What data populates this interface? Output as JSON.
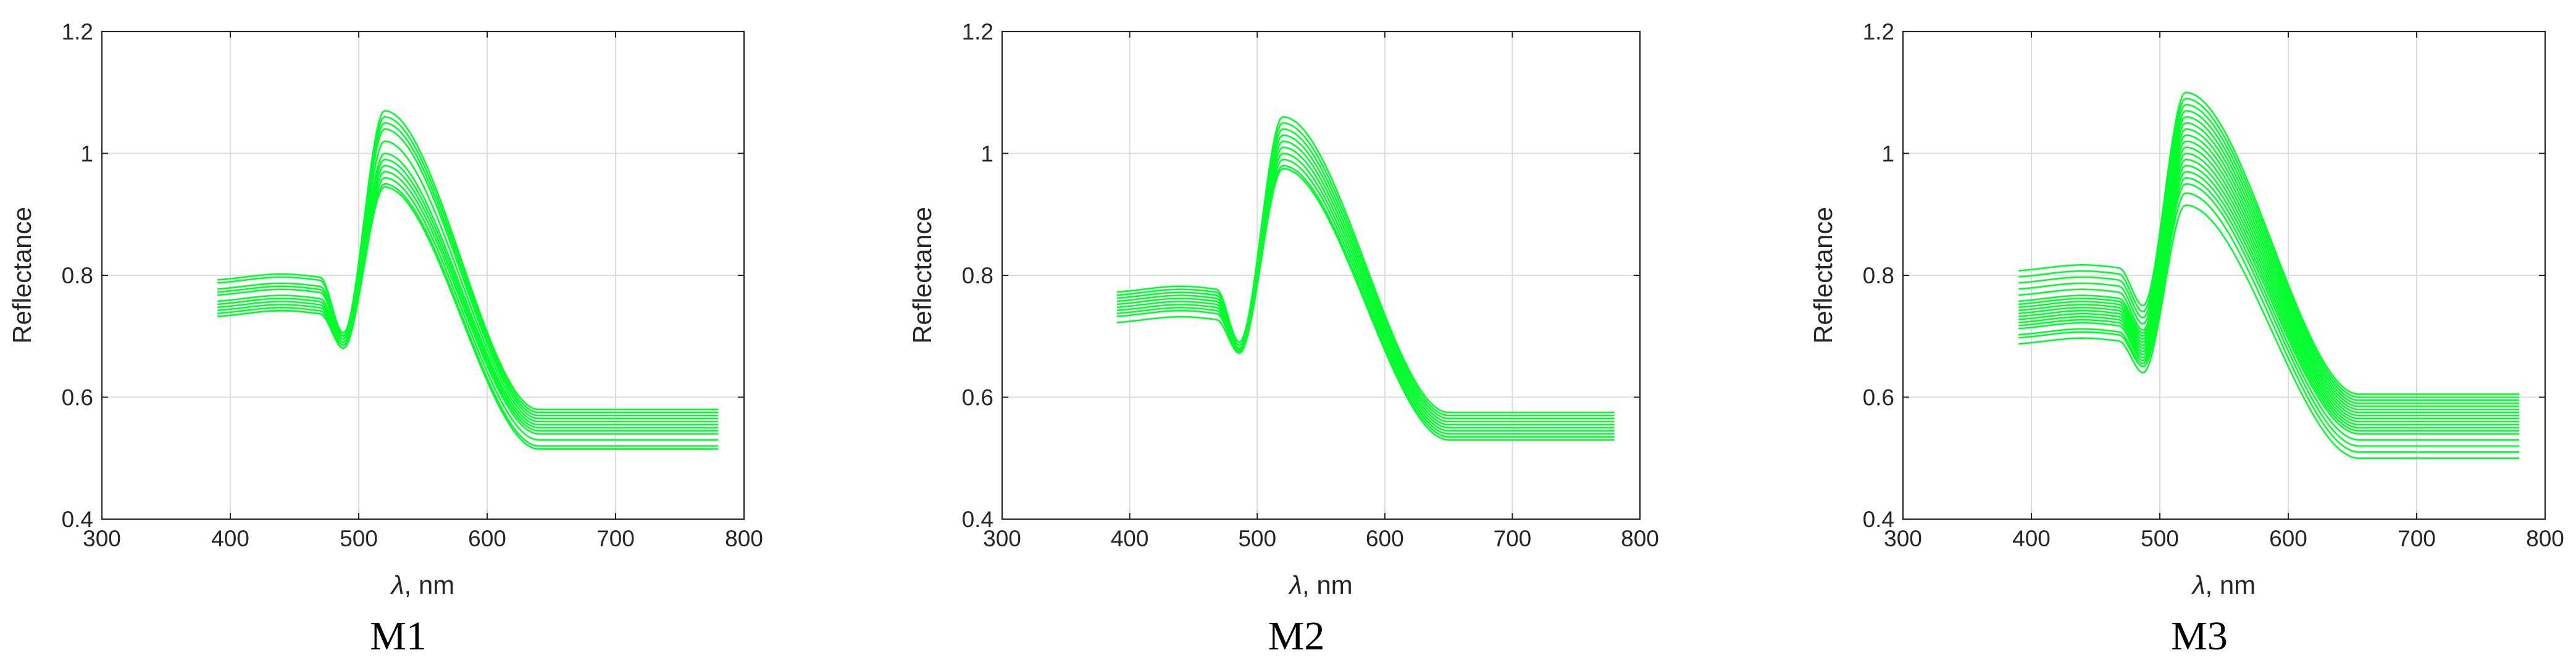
{
  "figure": {
    "background": "#ffffff"
  },
  "style": {
    "line_color": "#00ff2a",
    "grid_color": "#dcdcdc",
    "axis_color": "#262626",
    "text_color": "#262626",
    "label_color": "#000000"
  },
  "chart_data": [
    {
      "type": "line",
      "panel_label": "M1",
      "xlabel_symbol": "λ",
      "xlabel_rest": ", nm",
      "ylabel": "Reflectance",
      "xlim": [
        300,
        800
      ],
      "ylim": [
        0.4,
        1.2
      ],
      "xticks": [
        300,
        400,
        500,
        600,
        700,
        800
      ],
      "yticks": [
        0.4,
        0.6,
        0.8,
        1,
        1.2
      ],
      "xtick_labels": [
        "300",
        "400",
        "500",
        "600",
        "700",
        "800"
      ],
      "ytick_labels": [
        "0.4",
        "0.6",
        "0.8",
        "1",
        "1.2"
      ],
      "grid": true,
      "shape": {
        "dip_x": 488,
        "peak_x": 520,
        "rise_start_x": 470,
        "plateau_x": 640,
        "x_start": 390,
        "x_end": 780
      },
      "series": [
        {
          "name": "s1",
          "start": 0.79,
          "dip": 0.705,
          "peak": 1.07,
          "plateau": 0.58
        },
        {
          "name": "s2",
          "start": 0.785,
          "dip": 0.7,
          "peak": 1.06,
          "plateau": 0.575
        },
        {
          "name": "s3",
          "start": 0.775,
          "dip": 0.7,
          "peak": 1.05,
          "plateau": 0.57
        },
        {
          "name": "s4",
          "start": 0.77,
          "dip": 0.695,
          "peak": 1.04,
          "plateau": 0.565
        },
        {
          "name": "s5",
          "start": 0.765,
          "dip": 0.695,
          "peak": 1.02,
          "plateau": 0.56
        },
        {
          "name": "s6",
          "start": 0.755,
          "dip": 0.69,
          "peak": 1.0,
          "plateau": 0.555
        },
        {
          "name": "s7",
          "start": 0.75,
          "dip": 0.69,
          "peak": 0.99,
          "plateau": 0.55
        },
        {
          "name": "s8",
          "start": 0.745,
          "dip": 0.685,
          "peak": 0.98,
          "plateau": 0.545
        },
        {
          "name": "s9",
          "start": 0.74,
          "dip": 0.685,
          "peak": 0.97,
          "plateau": 0.54
        },
        {
          "name": "s10",
          "start": 0.735,
          "dip": 0.68,
          "peak": 0.96,
          "plateau": 0.53
        },
        {
          "name": "s11",
          "start": 0.73,
          "dip": 0.68,
          "peak": 0.95,
          "plateau": 0.52
        },
        {
          "name": "s12",
          "start": 0.73,
          "dip": 0.68,
          "peak": 0.945,
          "plateau": 0.515
        }
      ]
    },
    {
      "type": "line",
      "panel_label": "M2",
      "xlabel_symbol": "λ",
      "xlabel_rest": ", nm",
      "ylabel": "Reflectance",
      "xlim": [
        300,
        800
      ],
      "ylim": [
        0.4,
        1.2
      ],
      "xticks": [
        300,
        400,
        500,
        600,
        700,
        800
      ],
      "yticks": [
        0.4,
        0.6,
        0.8,
        1,
        1.2
      ],
      "xtick_labels": [
        "300",
        "400",
        "500",
        "600",
        "700",
        "800"
      ],
      "ytick_labels": [
        "0.4",
        "0.6",
        "0.8",
        "1",
        "1.2"
      ],
      "grid": true,
      "shape": {
        "dip_x": 486,
        "peak_x": 520,
        "rise_start_x": 468,
        "plateau_x": 650,
        "x_start": 390,
        "x_end": 780
      },
      "series": [
        {
          "name": "s1",
          "start": 0.77,
          "dip": 0.69,
          "peak": 1.06,
          "plateau": 0.575
        },
        {
          "name": "s2",
          "start": 0.765,
          "dip": 0.69,
          "peak": 1.05,
          "plateau": 0.57
        },
        {
          "name": "s3",
          "start": 0.76,
          "dip": 0.685,
          "peak": 1.04,
          "plateau": 0.565
        },
        {
          "name": "s4",
          "start": 0.755,
          "dip": 0.685,
          "peak": 1.03,
          "plateau": 0.56
        },
        {
          "name": "s5",
          "start": 0.75,
          "dip": 0.68,
          "peak": 1.02,
          "plateau": 0.555
        },
        {
          "name": "s6",
          "start": 0.745,
          "dip": 0.68,
          "peak": 1.01,
          "plateau": 0.55
        },
        {
          "name": "s7",
          "start": 0.74,
          "dip": 0.678,
          "peak": 1.0,
          "plateau": 0.545
        },
        {
          "name": "s8",
          "start": 0.735,
          "dip": 0.675,
          "peak": 0.99,
          "plateau": 0.54
        },
        {
          "name": "s9",
          "start": 0.73,
          "dip": 0.675,
          "peak": 0.98,
          "plateau": 0.535
        },
        {
          "name": "s10",
          "start": 0.72,
          "dip": 0.672,
          "peak": 0.975,
          "plateau": 0.53
        }
      ]
    },
    {
      "type": "line",
      "panel_label": "M3",
      "xlabel_symbol": "λ",
      "xlabel_rest": ", nm",
      "ylabel": "Reflectance",
      "xlim": [
        300,
        800
      ],
      "ylim": [
        0.4,
        1.2
      ],
      "xticks": [
        300,
        400,
        500,
        600,
        700,
        800
      ],
      "yticks": [
        0.4,
        0.6,
        0.8,
        1,
        1.2
      ],
      "xtick_labels": [
        "300",
        "400",
        "500",
        "600",
        "700",
        "800"
      ],
      "ytick_labels": [
        "0.4",
        "0.6",
        "0.8",
        "1",
        "1.2"
      ],
      "grid": true,
      "shape": {
        "dip_x": 487,
        "peak_x": 520,
        "rise_start_x": 468,
        "plateau_x": 655,
        "x_start": 390,
        "x_end": 780
      },
      "series": [
        {
          "name": "s1",
          "start": 0.805,
          "dip": 0.75,
          "peak": 1.1,
          "plateau": 0.605
        },
        {
          "name": "s2",
          "start": 0.795,
          "dip": 0.74,
          "peak": 1.09,
          "plateau": 0.6
        },
        {
          "name": "s3",
          "start": 0.785,
          "dip": 0.73,
          "peak": 1.08,
          "plateau": 0.595
        },
        {
          "name": "s4",
          "start": 0.775,
          "dip": 0.72,
          "peak": 1.07,
          "plateau": 0.59
        },
        {
          "name": "s5",
          "start": 0.765,
          "dip": 0.71,
          "peak": 1.06,
          "plateau": 0.585
        },
        {
          "name": "s6",
          "start": 0.755,
          "dip": 0.705,
          "peak": 1.05,
          "plateau": 0.58
        },
        {
          "name": "s7",
          "start": 0.75,
          "dip": 0.7,
          "peak": 1.04,
          "plateau": 0.575
        },
        {
          "name": "s8",
          "start": 0.745,
          "dip": 0.695,
          "peak": 1.03,
          "plateau": 0.57
        },
        {
          "name": "s9",
          "start": 0.74,
          "dip": 0.69,
          "peak": 1.02,
          "plateau": 0.565
        },
        {
          "name": "s10",
          "start": 0.735,
          "dip": 0.685,
          "peak": 1.01,
          "plateau": 0.56
        },
        {
          "name": "s11",
          "start": 0.73,
          "dip": 0.68,
          "peak": 1.0,
          "plateau": 0.555
        },
        {
          "name": "s12",
          "start": 0.725,
          "dip": 0.675,
          "peak": 0.99,
          "plateau": 0.55
        },
        {
          "name": "s13",
          "start": 0.72,
          "dip": 0.67,
          "peak": 0.98,
          "plateau": 0.545
        },
        {
          "name": "s14",
          "start": 0.715,
          "dip": 0.665,
          "peak": 0.97,
          "plateau": 0.54
        },
        {
          "name": "s15",
          "start": 0.71,
          "dip": 0.66,
          "peak": 0.96,
          "plateau": 0.53
        },
        {
          "name": "s16",
          "start": 0.7,
          "dip": 0.655,
          "peak": 0.95,
          "plateau": 0.52
        },
        {
          "name": "s17",
          "start": 0.695,
          "dip": 0.65,
          "peak": 0.935,
          "plateau": 0.51
        },
        {
          "name": "s18",
          "start": 0.685,
          "dip": 0.64,
          "peak": 0.915,
          "plateau": 0.5
        }
      ]
    }
  ]
}
